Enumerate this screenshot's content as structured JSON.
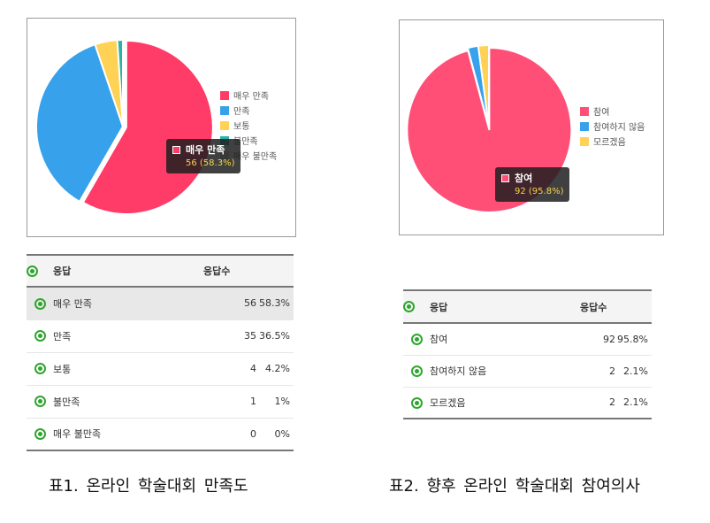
{
  "chart_data": [
    {
      "type": "pie",
      "categories": [
        "매우 만족",
        "만족",
        "보통",
        "불만족",
        "매우 불만족"
      ],
      "values": [
        56,
        35,
        4,
        1,
        0
      ],
      "percentages": [
        "58.3%",
        "36.5%",
        "4.2%",
        "1%",
        "0%"
      ],
      "colors": [
        "#ff3b67",
        "#38a1ec",
        "#ffd154",
        "#27b3a6",
        "#c9cbcf"
      ],
      "legend": "right",
      "tooltip": {
        "label": "매우 만족",
        "value": "56 (58.3%)"
      }
    },
    {
      "type": "pie",
      "categories": [
        "참여",
        "참여하지 않음",
        "모르겠음"
      ],
      "values": [
        92,
        2,
        2
      ],
      "percentages": [
        "95.8%",
        "2.1%",
        "2.1%"
      ],
      "colors": [
        "#ff4f77",
        "#38a1ec",
        "#ffd154"
      ],
      "legend": "right",
      "tooltip": {
        "label": "참여",
        "value": "92 (95.8%)"
      }
    }
  ],
  "tables": {
    "table1": {
      "headers": {
        "response": "응답",
        "count": "응답수"
      },
      "rows": [
        {
          "label": "매우 만족",
          "count": "56",
          "pct": "58.3%"
        },
        {
          "label": "만족",
          "count": "35",
          "pct": "36.5%"
        },
        {
          "label": "보통",
          "count": "4",
          "pct": "4.2%"
        },
        {
          "label": "불만족",
          "count": "1",
          "pct": "1%"
        },
        {
          "label": "매우 불만족",
          "count": "0",
          "pct": "0%"
        }
      ]
    },
    "table2": {
      "headers": {
        "response": "응답",
        "count": "응답수"
      },
      "rows": [
        {
          "label": "참여",
          "count": "92",
          "pct": "95.8%"
        },
        {
          "label": "참여하지 않음",
          "count": "2",
          "pct": "2.1%"
        },
        {
          "label": "모르겠음",
          "count": "2",
          "pct": "2.1%"
        }
      ]
    }
  },
  "captions": {
    "caption1": "표1. 온라인 학술대회 만족도",
    "caption2": "표2. 향후 온라인 학술대회 참여의사"
  },
  "icons": {
    "row_icon": "eye-icon"
  }
}
